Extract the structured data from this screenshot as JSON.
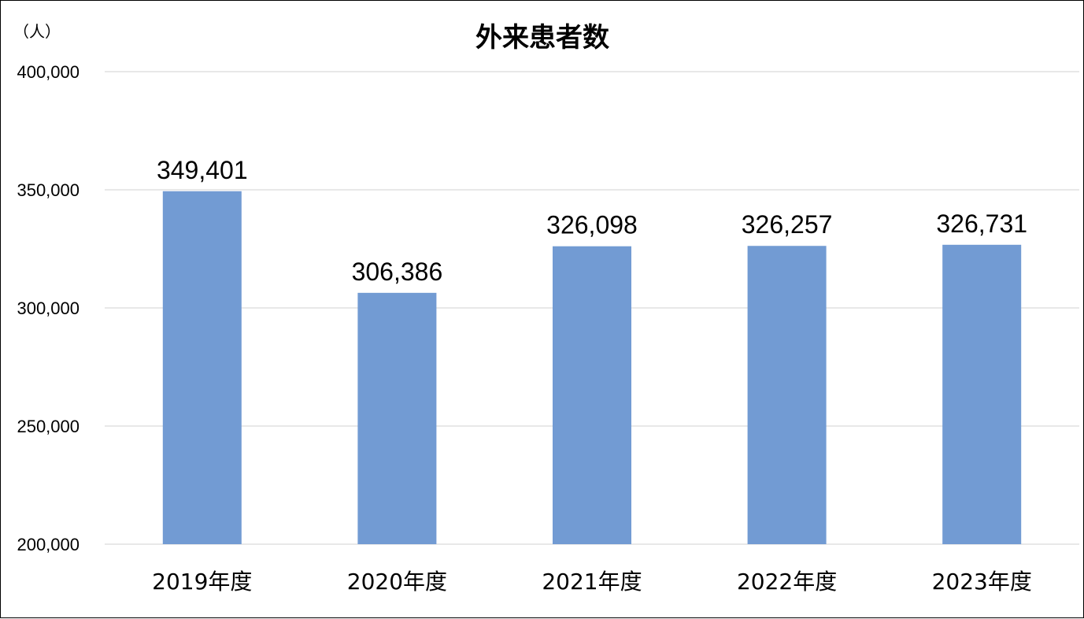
{
  "chart_data": {
    "type": "bar",
    "title": "外来患者数",
    "unit_label": "（人）",
    "categories": [
      "2019年度",
      "2020年度",
      "2021年度",
      "2022年度",
      "2023年度"
    ],
    "values": [
      349401,
      306386,
      326098,
      326257,
      326731
    ],
    "data_labels": [
      "349,401",
      "306,386",
      "326,098",
      "326,257",
      "326,731"
    ],
    "ylim": [
      200000,
      400000
    ],
    "yticks": [
      200000,
      250000,
      300000,
      350000,
      400000
    ],
    "ytick_labels": [
      "200,000",
      "250,000",
      "300,000",
      "350,000",
      "400,000"
    ],
    "grid": true,
    "legend": "none",
    "colors": {
      "bar": "#729BD3",
      "grid": "#D9D9D9",
      "text": "#000000"
    }
  }
}
